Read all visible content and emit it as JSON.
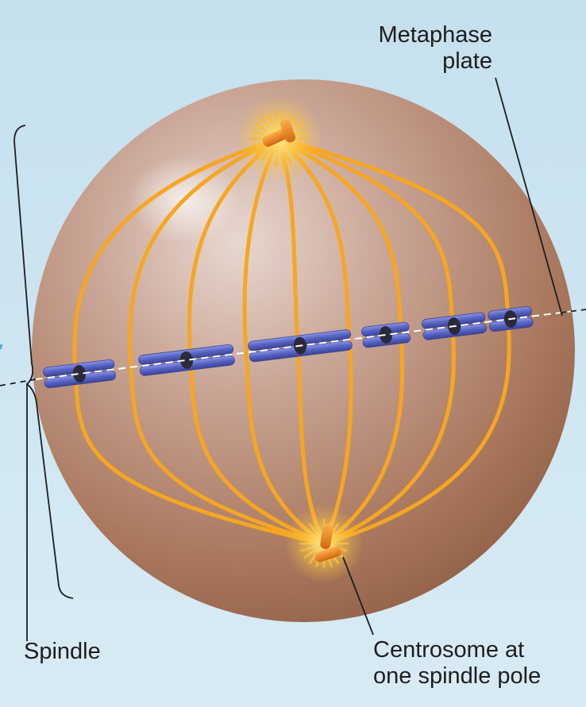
{
  "labels": {
    "metaphase_plate": [
      "Metaphase",
      "plate"
    ],
    "spindle": "Spindle",
    "centrosome": [
      "Centrosome at",
      "one spindle pole"
    ]
  },
  "colors": {
    "background": "#cfe6f1",
    "cell": "#a06e55",
    "microtubule": "#f5a623",
    "chromosome": "#5a64c0",
    "centromere": "#2a2a3a",
    "centrosome": "#e37a1c",
    "leader_line": "#1e1e1e"
  }
}
